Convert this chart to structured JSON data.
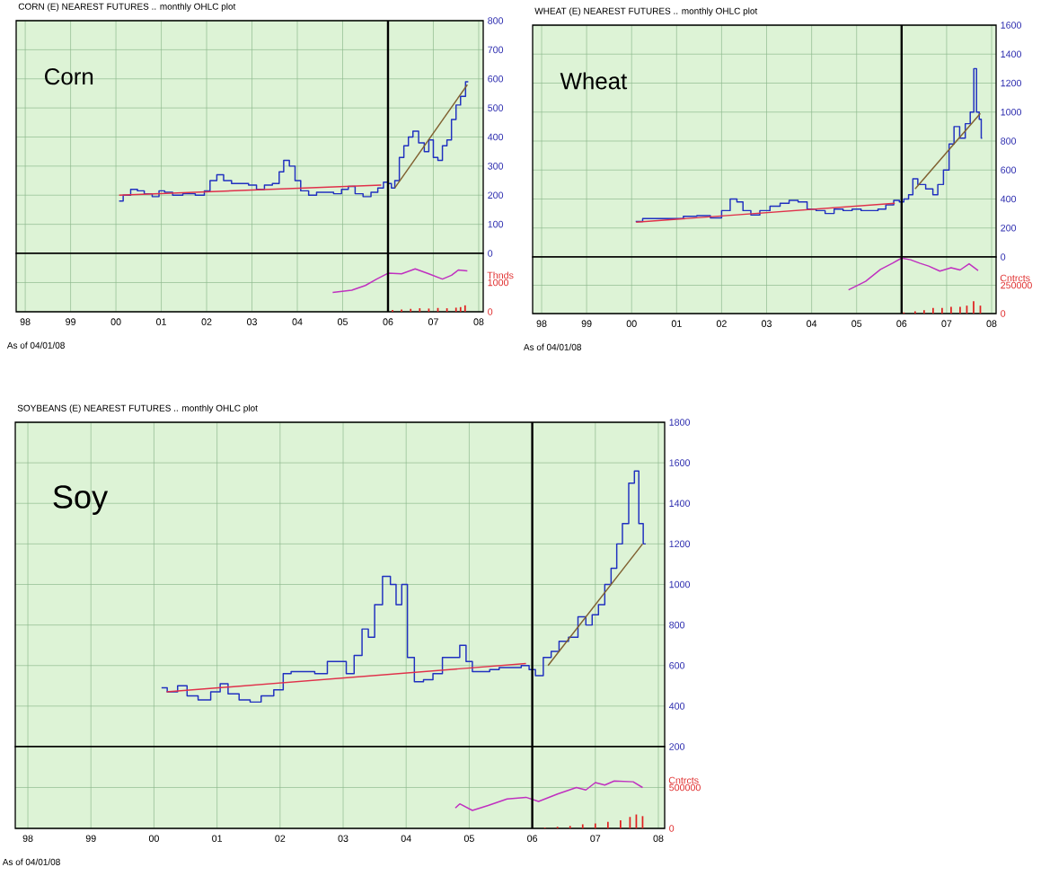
{
  "chart_data": [
    {
      "type": "step",
      "title": "CORN (E) NEAREST FUTURES .. monthly OHLC plot",
      "xlim": [
        1997.8,
        2008.1
      ],
      "ylim": [
        0,
        800
      ],
      "grid": true,
      "tick_labels": "y",
      "xticks": [
        {
          "value": 1998,
          "label": null
        },
        {
          "value": 1999,
          "label": null
        },
        {
          "value": 2000,
          "label": null
        },
        {
          "value": 2001,
          "label": null
        },
        {
          "value": 2002,
          "label": null
        },
        {
          "value": 2003,
          "label": null
        },
        {
          "value": 2004,
          "label": null
        },
        {
          "value": 2005,
          "label": null
        },
        {
          "value": 2006,
          "label": null
        },
        {
          "value": 2007,
          "label": null
        },
        {
          "value": 2008,
          "label": null
        }
      ],
      "yticks": [
        0,
        100,
        200,
        300,
        400,
        500,
        600,
        700,
        800
      ],
      "ref_lines": [
        {
          "axis": "x",
          "value": 2006,
          "color": "#000000"
        }
      ],
      "annotations": [
        "Corn"
      ],
      "series": [
        {
          "color": "#2030c0",
          "x": [
            2000.07,
            2000.25,
            2000.4,
            2000.55,
            2000.7,
            2000.9,
            2001.0,
            2001.15,
            2001.35,
            2001.6,
            2001.9,
            2002.0,
            2002.15,
            2002.3,
            2002.45,
            2002.65,
            2002.85,
            2003.0,
            2003.2,
            2003.35,
            2003.55,
            2003.65,
            2003.75,
            2003.9,
            2004.0,
            2004.15,
            2004.35,
            2004.5,
            2004.7,
            2004.9,
            2005.05,
            2005.2,
            2005.35,
            2005.55,
            2005.7,
            2005.85,
            2005.95,
            2006.05,
            2006.1,
            2006.2,
            2006.3,
            2006.4,
            2006.5,
            2006.6,
            2006.75,
            2006.85,
            2006.95,
            2007.05,
            2007.15,
            2007.25,
            2007.35,
            2007.45,
            2007.55,
            2007.65,
            2007.77
          ],
          "values": [
            180,
            200,
            220,
            215,
            205,
            195,
            215,
            210,
            200,
            205,
            200,
            215,
            250,
            270,
            250,
            240,
            240,
            235,
            220,
            235,
            240,
            280,
            320,
            300,
            250,
            215,
            200,
            210,
            210,
            205,
            220,
            230,
            205,
            195,
            210,
            225,
            245,
            240,
            225,
            250,
            330,
            370,
            400,
            420,
            380,
            350,
            390,
            330,
            320,
            370,
            390,
            460,
            510,
            540,
            590
          ]
        },
        {
          "type": "line",
          "color": "#e0304a",
          "x": [
            2000.07,
            2005.85
          ],
          "values": [
            200,
            235
          ]
        },
        {
          "type": "line",
          "color": "#806030",
          "x": [
            2006.15,
            2007.75
          ],
          "values": [
            225,
            580
          ]
        }
      ]
    },
    {
      "type": "line",
      "xlim": [
        1997.8,
        2008.1
      ],
      "ylim": [
        0,
        2000
      ],
      "grid": true,
      "ylabel": "Thnds",
      "xticks": [
        {
          "value": 1998,
          "label": "98"
        },
        {
          "value": 1999,
          "label": "99"
        },
        {
          "value": 2000,
          "label": "00"
        },
        {
          "value": 2001,
          "label": "01"
        },
        {
          "value": 2002,
          "label": "02"
        },
        {
          "value": 2003,
          "label": "03"
        },
        {
          "value": 2004,
          "label": "04"
        },
        {
          "value": 2005,
          "label": "05"
        },
        {
          "value": 2006,
          "label": "06"
        },
        {
          "value": 2007,
          "label": "07"
        },
        {
          "value": 2008,
          "label": "08"
        }
      ],
      "yticks": [
        0,
        1000
      ],
      "ref_lines": [
        {
          "axis": "x",
          "value": 2006,
          "color": "#000000"
        }
      ],
      "annotations": [
        "As of 04/01/08"
      ],
      "series": [
        {
          "color": "#c030c0",
          "x": [
            2004.78,
            2005.2,
            2005.5,
            2005.75,
            2006.0,
            2006.3,
            2006.6,
            2006.9,
            2007.2,
            2007.4,
            2007.55,
            2007.75
          ],
          "values": [
            660,
            740,
            900,
            1120,
            1320,
            1300,
            1470,
            1300,
            1120,
            1250,
            1430,
            1400
          ]
        },
        {
          "type": "bar",
          "color": "#e02020",
          "x": [
            2006.1,
            2006.3,
            2006.5,
            2006.7,
            2006.9,
            2007.1,
            2007.3,
            2007.5,
            2007.6,
            2007.7
          ],
          "values": [
            60,
            80,
            100,
            120,
            110,
            130,
            120,
            140,
            160,
            220
          ]
        }
      ]
    },
    {
      "type": "step",
      "title": "WHEAT (E) NEAREST FUTURES .. monthly OHLC plot",
      "xlim": [
        1997.8,
        2008.1
      ],
      "ylim": [
        0,
        1600
      ],
      "grid": true,
      "tick_labels": "y",
      "xticks": [
        {
          "value": 1998,
          "label": null
        },
        {
          "value": 1999,
          "label": null
        },
        {
          "value": 2000,
          "label": null
        },
        {
          "value": 2001,
          "label": null
        },
        {
          "value": 2002,
          "label": null
        },
        {
          "value": 2003,
          "label": null
        },
        {
          "value": 2004,
          "label": null
        },
        {
          "value": 2005,
          "label": null
        },
        {
          "value": 2006,
          "label": null
        },
        {
          "value": 2007,
          "label": null
        },
        {
          "value": 2008,
          "label": null
        }
      ],
      "yticks": [
        0,
        200,
        400,
        600,
        800,
        1000,
        1200,
        1400,
        1600
      ],
      "ref_lines": [
        {
          "axis": "x",
          "value": 2006,
          "color": "#000000"
        }
      ],
      "annotations": [
        "Wheat"
      ],
      "series": [
        {
          "color": "#2030c0",
          "x": [
            2000.09,
            2000.4,
            2000.7,
            2001.0,
            2001.3,
            2001.6,
            2001.9,
            2002.1,
            2002.28,
            2002.4,
            2002.55,
            2002.75,
            2002.95,
            2003.2,
            2003.4,
            2003.6,
            2003.8,
            2004.0,
            2004.2,
            2004.4,
            2004.6,
            2004.8,
            2005.0,
            2005.2,
            2005.4,
            2005.55,
            2005.75,
            2005.9,
            2006.0,
            2006.1,
            2006.21,
            2006.29,
            2006.43,
            2006.64,
            2006.75,
            2006.86,
            2007.0,
            2007.11,
            2007.22,
            2007.36,
            2007.47,
            2007.58,
            2007.63,
            2007.7,
            2007.75,
            2007.79
          ],
          "values": [
            245,
            265,
            265,
            265,
            280,
            285,
            270,
            320,
            400,
            380,
            320,
            290,
            320,
            350,
            370,
            390,
            380,
            330,
            320,
            300,
            330,
            320,
            330,
            320,
            320,
            330,
            360,
            390,
            380,
            400,
            430,
            540,
            500,
            470,
            430,
            500,
            600,
            780,
            900,
            820,
            920,
            1000,
            1300,
            1000,
            950,
            820
          ]
        },
        {
          "type": "line",
          "color": "#e0304a",
          "x": [
            2000.1,
            2005.85
          ],
          "values": [
            240,
            370
          ]
        },
        {
          "type": "line",
          "color": "#806030",
          "x": [
            2006.3,
            2007.75
          ],
          "values": [
            470,
            990
          ]
        }
      ]
    },
    {
      "type": "line",
      "xlim": [
        1997.8,
        2008.1
      ],
      "ylim": [
        0,
        500000
      ],
      "grid": true,
      "ylabel": "Cntrcts",
      "xticks": [
        {
          "value": 1998,
          "label": "98"
        },
        {
          "value": 1999,
          "label": "99"
        },
        {
          "value": 2000,
          "label": "00"
        },
        {
          "value": 2001,
          "label": "01"
        },
        {
          "value": 2002,
          "label": "02"
        },
        {
          "value": 2003,
          "label": "03"
        },
        {
          "value": 2004,
          "label": "04"
        },
        {
          "value": 2005,
          "label": "05"
        },
        {
          "value": 2006,
          "label": "06"
        },
        {
          "value": 2007,
          "label": "07"
        },
        {
          "value": 2008,
          "label": "08"
        }
      ],
      "yticks": [
        0,
        250000
      ],
      "ref_lines": [
        {
          "axis": "x",
          "value": 2006,
          "color": "#000000"
        }
      ],
      "annotations": [
        "As of 04/01/08"
      ],
      "series": [
        {
          "color": "#c030c0",
          "x": [
            2004.82,
            2005.2,
            2005.53,
            2005.8,
            2006.0,
            2006.2,
            2006.4,
            2006.6,
            2006.85,
            2007.1,
            2007.3,
            2007.5,
            2007.7
          ],
          "values": [
            210000,
            285000,
            390000,
            445000,
            490000,
            475000,
            445000,
            420000,
            375000,
            405000,
            385000,
            440000,
            380000
          ]
        },
        {
          "type": "bar",
          "color": "#e02020",
          "x": [
            2006.05,
            2006.3,
            2006.5,
            2006.7,
            2006.9,
            2007.1,
            2007.3,
            2007.45,
            2007.6,
            2007.75
          ],
          "values": [
            10000,
            20000,
            30000,
            50000,
            50000,
            60000,
            60000,
            70000,
            110000,
            70000
          ]
        }
      ]
    },
    {
      "type": "step",
      "title": "SOYBEANS (E) NEAREST FUTURES .. monthly OHLC plot",
      "xlim": [
        1997.8,
        2008.1
      ],
      "ylim": [
        200,
        1800
      ],
      "grid": true,
      "tick_labels": "y",
      "xticks": [
        {
          "value": 1998,
          "label": null
        },
        {
          "value": 1999,
          "label": null
        },
        {
          "value": 2000,
          "label": null
        },
        {
          "value": 2001,
          "label": null
        },
        {
          "value": 2002,
          "label": null
        },
        {
          "value": 2003,
          "label": null
        },
        {
          "value": 2004,
          "label": null
        },
        {
          "value": 2005,
          "label": null
        },
        {
          "value": 2006,
          "label": null
        },
        {
          "value": 2007,
          "label": null
        },
        {
          "value": 2008,
          "label": null
        }
      ],
      "yticks": [
        200,
        400,
        600,
        800,
        1000,
        1200,
        1400,
        1600,
        1800
      ],
      "ref_lines": [
        {
          "axis": "x",
          "value": 2006,
          "color": "#000000"
        }
      ],
      "annotations": [
        "Soy"
      ],
      "series": [
        {
          "color": "#2030c0",
          "x": [
            2000.12,
            2000.3,
            2000.45,
            2000.6,
            2000.8,
            2001.0,
            2001.1,
            2001.25,
            2001.45,
            2001.6,
            2001.8,
            2002.0,
            2002.1,
            2002.25,
            2002.45,
            2002.65,
            2002.85,
            2003.0,
            2003.1,
            2003.25,
            2003.35,
            2003.45,
            2003.55,
            2003.7,
            2003.8,
            2003.88,
            2003.98,
            2004.06,
            2004.2,
            2004.35,
            2004.5,
            2004.65,
            2004.8,
            2004.9,
            2005.0,
            2005.1,
            2005.25,
            2005.4,
            2005.55,
            2005.75,
            2005.9,
            2006.0,
            2006.1,
            2006.25,
            2006.35,
            2006.5,
            2006.65,
            2006.8,
            2006.9,
            2007.0,
            2007.1,
            2007.2,
            2007.3,
            2007.38,
            2007.48,
            2007.58,
            2007.66,
            2007.72,
            2007.8
          ],
          "values": [
            490,
            470,
            500,
            450,
            430,
            470,
            510,
            460,
            430,
            420,
            450,
            480,
            560,
            570,
            570,
            560,
            620,
            620,
            560,
            650,
            780,
            740,
            900,
            1040,
            1000,
            900,
            1000,
            640,
            520,
            530,
            560,
            640,
            640,
            700,
            620,
            570,
            570,
            580,
            590,
            590,
            600,
            580,
            550,
            640,
            670,
            720,
            740,
            840,
            800,
            850,
            900,
            1000,
            1080,
            1200,
            1300,
            1500,
            1560,
            1300,
            1200
          ]
        },
        {
          "type": "line",
          "color": "#e0304a",
          "x": [
            2000.2,
            2005.9
          ],
          "values": [
            470,
            610
          ]
        },
        {
          "type": "line",
          "color": "#806030",
          "x": [
            2006.25,
            2007.75
          ],
          "values": [
            600,
            1200
          ]
        }
      ]
    },
    {
      "type": "line",
      "xlim": [
        1997.8,
        2008.1
      ],
      "ylim": [
        0,
        1000000
      ],
      "grid": true,
      "ylabel": "Cntrcts",
      "xticks": [
        {
          "value": 1998,
          "label": "98"
        },
        {
          "value": 1999,
          "label": "99"
        },
        {
          "value": 2000,
          "label": "00"
        },
        {
          "value": 2001,
          "label": "01"
        },
        {
          "value": 2002,
          "label": "02"
        },
        {
          "value": 2003,
          "label": "03"
        },
        {
          "value": 2004,
          "label": "04"
        },
        {
          "value": 2005,
          "label": "05"
        },
        {
          "value": 2006,
          "label": "06"
        },
        {
          "value": 2007,
          "label": "07"
        },
        {
          "value": 2008,
          "label": "08"
        }
      ],
      "yticks": [
        0,
        500000
      ],
      "ref_lines": [
        {
          "axis": "x",
          "value": 2006,
          "color": "#000000"
        }
      ],
      "annotations": [
        "As of 04/01/08"
      ],
      "series": [
        {
          "color": "#c030c0",
          "x": [
            2004.78,
            2004.85,
            2005.05,
            2005.3,
            2005.6,
            2005.9,
            2006.1,
            2006.4,
            2006.7,
            2006.85,
            2007.0,
            2007.15,
            2007.3,
            2007.6,
            2007.75
          ],
          "values": [
            250000,
            300000,
            220000,
            280000,
            360000,
            380000,
            330000,
            420000,
            500000,
            470000,
            560000,
            530000,
            580000,
            570000,
            500000
          ]
        },
        {
          "type": "bar",
          "color": "#e02020",
          "x": [
            2006.2,
            2006.4,
            2006.6,
            2006.8,
            2007.0,
            2007.2,
            2007.4,
            2007.55,
            2007.65,
            2007.75
          ],
          "values": [
            10000,
            20000,
            30000,
            50000,
            60000,
            80000,
            100000,
            140000,
            170000,
            150000
          ]
        }
      ]
    }
  ]
}
